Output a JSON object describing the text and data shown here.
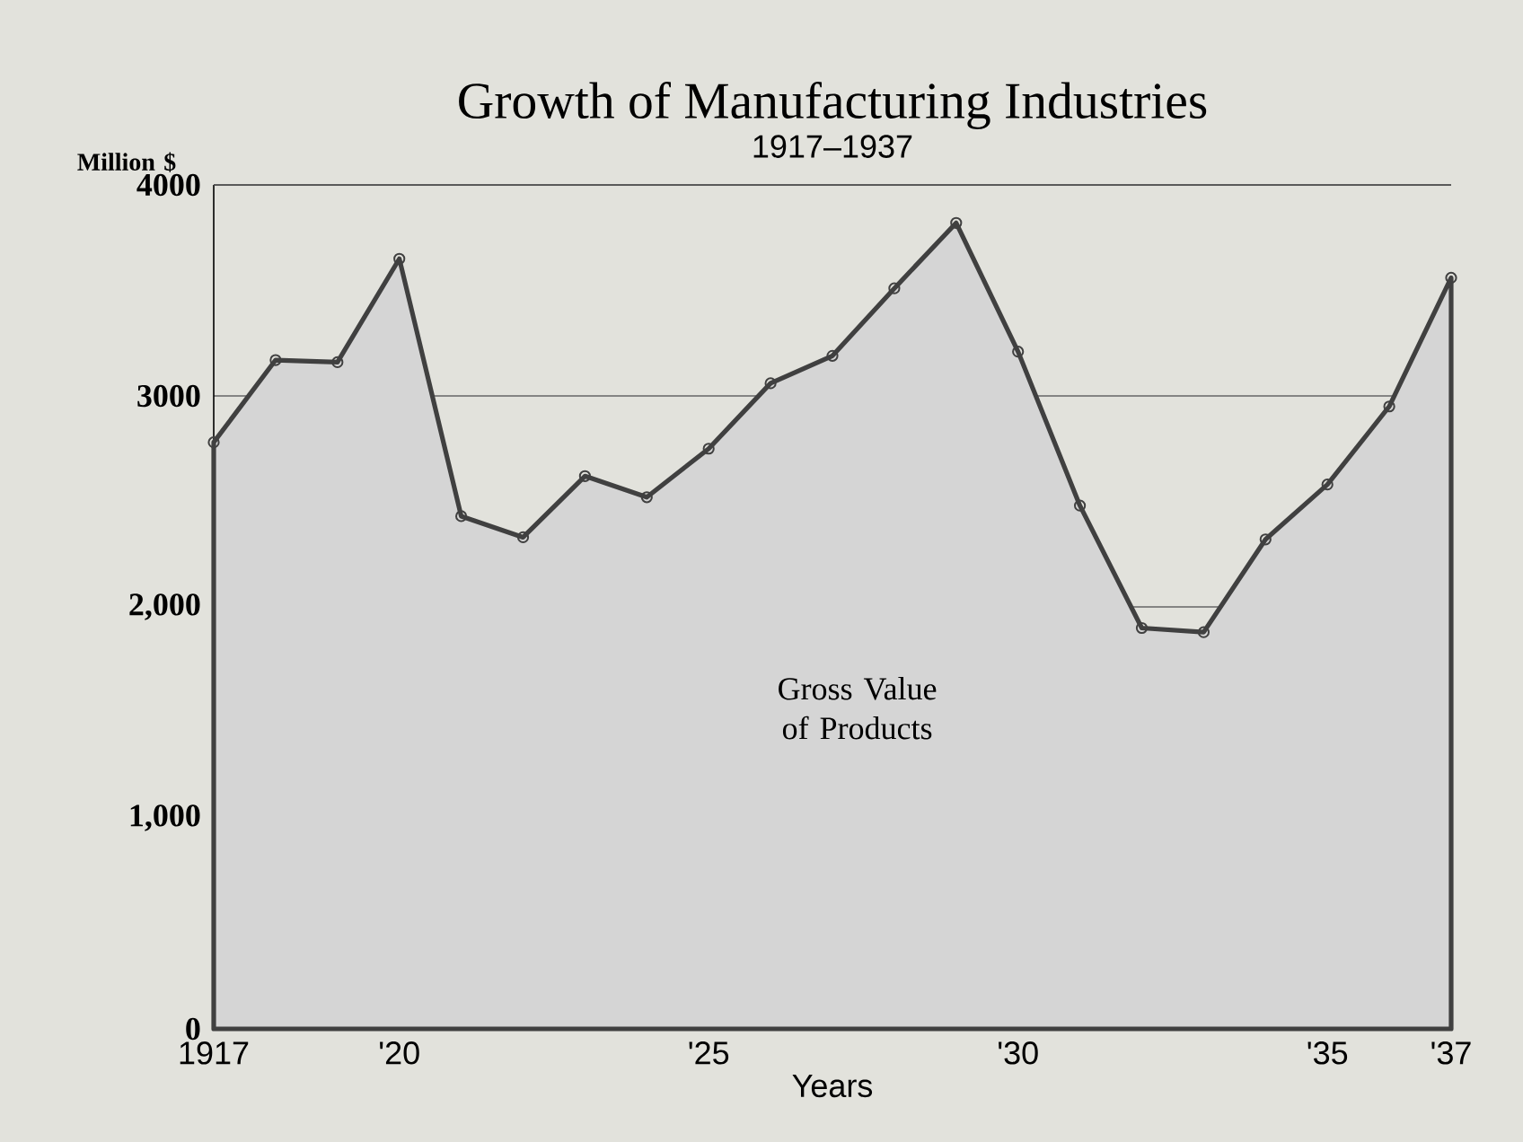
{
  "chart_data": {
    "type": "area",
    "title": "Growth of Manufacturing Industries",
    "subtitle": "1917–1937",
    "xlabel": "Years",
    "ylabel": "Million $",
    "annotations": [
      "Gross Value of Products"
    ],
    "x": [
      1917,
      1918,
      1919,
      1920,
      1921,
      1922,
      1923,
      1924,
      1925,
      1926,
      1927,
      1928,
      1929,
      1930,
      1931,
      1932,
      1933,
      1934,
      1935,
      1936,
      1937
    ],
    "values": [
      2780,
      3170,
      3160,
      3650,
      2430,
      2330,
      2620,
      2520,
      2750,
      3060,
      3190,
      3510,
      3820,
      3210,
      2480,
      1900,
      1880,
      2320,
      2580,
      2950,
      3560
    ],
    "color": "#404040",
    "marker": "circle",
    "grid": "y",
    "xlim": [
      1917,
      1937
    ],
    "xticks": [
      {
        "value": 1917,
        "label": "1917"
      },
      {
        "value": 1918,
        "label": null
      },
      {
        "value": 1919,
        "label": null
      },
      {
        "value": 1920,
        "label": "'20"
      },
      {
        "value": 1921,
        "label": null
      },
      {
        "value": 1922,
        "label": null
      },
      {
        "value": 1923,
        "label": null
      },
      {
        "value": 1924,
        "label": null
      },
      {
        "value": 1925,
        "label": "'25"
      },
      {
        "value": 1926,
        "label": null
      },
      {
        "value": 1927,
        "label": null
      },
      {
        "value": 1928,
        "label": null
      },
      {
        "value": 1929,
        "label": null
      },
      {
        "value": 1930,
        "label": "'30"
      },
      {
        "value": 1931,
        "label": null
      },
      {
        "value": 1932,
        "label": null
      },
      {
        "value": 1933,
        "label": null
      },
      {
        "value": 1934,
        "label": null
      },
      {
        "value": 1935,
        "label": "'35"
      },
      {
        "value": 1936,
        "label": null
      },
      {
        "value": 1937,
        "label": "'37"
      }
    ],
    "ylim": [
      0,
      4000
    ],
    "yticks": [
      0,
      {
        "value": 1000,
        "label": "1,000"
      },
      {
        "value": 2000,
        "label": "2,000"
      },
      3000,
      4000
    ]
  }
}
